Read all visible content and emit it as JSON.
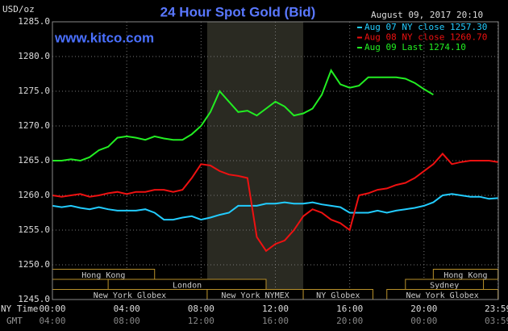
{
  "chart_data": {
    "type": "line",
    "title": "24 Hour Spot Gold (Bid)",
    "site": "www.kitco.com",
    "ylabel": "USD/oz",
    "timestamp": "August 09, 2017 20:10",
    "ny_label": "NY Time",
    "gmt_label": "GMT",
    "x": [
      0,
      0.5,
      1,
      1.5,
      2,
      2.5,
      3,
      3.5,
      4,
      4.5,
      5,
      5.5,
      6,
      6.5,
      7,
      7.5,
      8,
      8.5,
      9,
      9.5,
      10,
      10.5,
      11,
      11.5,
      12,
      12.5,
      13,
      13.5,
      14,
      14.5,
      15,
      15.5,
      16,
      16.5,
      17,
      17.5,
      18,
      18.5,
      19,
      19.5,
      20,
      20.5,
      21,
      21.5,
      22,
      22.5,
      23,
      23.5,
      23.98
    ],
    "series": [
      {
        "name": "Aug 07 NY close 1257.30",
        "color": "#22ccff",
        "values": [
          1258.5,
          1258.3,
          1258.5,
          1258.2,
          1258,
          1258.3,
          1258,
          1257.8,
          1257.8,
          1257.8,
          1258,
          1257.5,
          1256.5,
          1256.5,
          1256.8,
          1257,
          1256.5,
          1256.8,
          1257.2,
          1257.5,
          1258.5,
          1258.5,
          1258.5,
          1258.8,
          1258.8,
          1259,
          1258.8,
          1258.8,
          1259,
          1258.7,
          1258.5,
          1258.3,
          1257.5,
          1257.5,
          1257.5,
          1257.8,
          1257.5,
          1257.8,
          1258,
          1258.2,
          1258.5,
          1259,
          1260,
          1260.2,
          1260,
          1259.8,
          1259.8,
          1259.5,
          1259.6
        ]
      },
      {
        "name": "Aug 08 NY close 1260.70",
        "color": "#ee1111",
        "values": [
          1260,
          1259.8,
          1260,
          1260.2,
          1259.8,
          1260,
          1260.3,
          1260.5,
          1260.2,
          1260.5,
          1260.5,
          1260.8,
          1260.8,
          1260.5,
          1260.8,
          1262.5,
          1264.5,
          1264.3,
          1263.5,
          1263,
          1262.8,
          1262.5,
          1254,
          1252,
          1253,
          1253.5,
          1255,
          1257,
          1258,
          1257.5,
          1256.5,
          1256,
          1255,
          1260,
          1260.3,
          1260.8,
          1261,
          1261.5,
          1261.8,
          1262.5,
          1263.5,
          1264.5,
          1266,
          1264.5,
          1264.8,
          1265,
          1265,
          1265,
          1264.8
        ]
      },
      {
        "name": "Aug 09 Last 1274.10",
        "color": "#22ee22",
        "values": [
          1265,
          1265,
          1265.2,
          1265,
          1265.5,
          1266.5,
          1267,
          1268.3,
          1268.5,
          1268.3,
          1268,
          1268.5,
          1268.2,
          1268,
          1268,
          1268.8,
          1270,
          1272,
          1275,
          1273.5,
          1272,
          1272.2,
          1271.5,
          1272.5,
          1273.5,
          1272.8,
          1271.5,
          1271.8,
          1272.5,
          1274.5,
          1278,
          1276,
          1275.5,
          1275.8,
          1277,
          1277,
          1277,
          1277,
          1276.8,
          1276.2,
          1275.3,
          1274.5,
          null,
          null,
          null,
          null,
          null,
          null,
          null
        ]
      }
    ],
    "xlim": [
      0,
      24
    ],
    "xticks": [
      {
        "value": 0,
        "label": "00:00"
      },
      {
        "value": 4,
        "label": "04:00"
      },
      {
        "value": 8,
        "label": "08:00"
      },
      {
        "value": 12,
        "label": "12:00"
      },
      {
        "value": 16,
        "label": "16:00"
      },
      {
        "value": 20,
        "label": "20:00"
      },
      {
        "value": 23.98,
        "label": "23:59"
      }
    ],
    "gmt_ticks": [
      "04:00",
      "08:00",
      "12:00",
      "16:00",
      "20:00",
      "00:00",
      "03:59"
    ],
    "ylim": [
      1245,
      1285
    ],
    "yticks": [
      {
        "value": 1245,
        "label": "1245.0"
      },
      {
        "value": 1250,
        "label": "1250.0"
      },
      {
        "value": 1255,
        "label": "1255.0"
      },
      {
        "value": 1260,
        "label": "1260.0"
      },
      {
        "value": 1265,
        "label": "1265.0"
      },
      {
        "value": 1270,
        "label": "1270.0"
      },
      {
        "value": 1275,
        "label": "1275.0"
      },
      {
        "value": 1280,
        "label": "1280.0"
      },
      {
        "value": 1285,
        "label": "1285.0"
      }
    ],
    "grid": true,
    "shaded_region": [
      8.33,
      13.5
    ],
    "sessions": [
      {
        "label": "Hong Kong",
        "row": 1,
        "start": 0,
        "end": 5.5
      },
      {
        "label": "London",
        "row": 2,
        "start": 3,
        "end": 11.5
      },
      {
        "label": "New York Globex",
        "row": 3,
        "start": 0,
        "end": 8.33
      },
      {
        "label": "New York NYMEX",
        "row": 3,
        "start": 8.33,
        "end": 13.5
      },
      {
        "label": "NY Globex",
        "row": 3,
        "start": 13.5,
        "end": 17.25
      },
      {
        "label": "Hong Kong",
        "row": 1,
        "start": 20.5,
        "end": 23.98
      },
      {
        "label": "Sydney",
        "row": 2,
        "start": 19,
        "end": 23.2
      },
      {
        "label": "New York Globex",
        "row": 3,
        "start": 18,
        "end": 23.98
      }
    ]
  }
}
